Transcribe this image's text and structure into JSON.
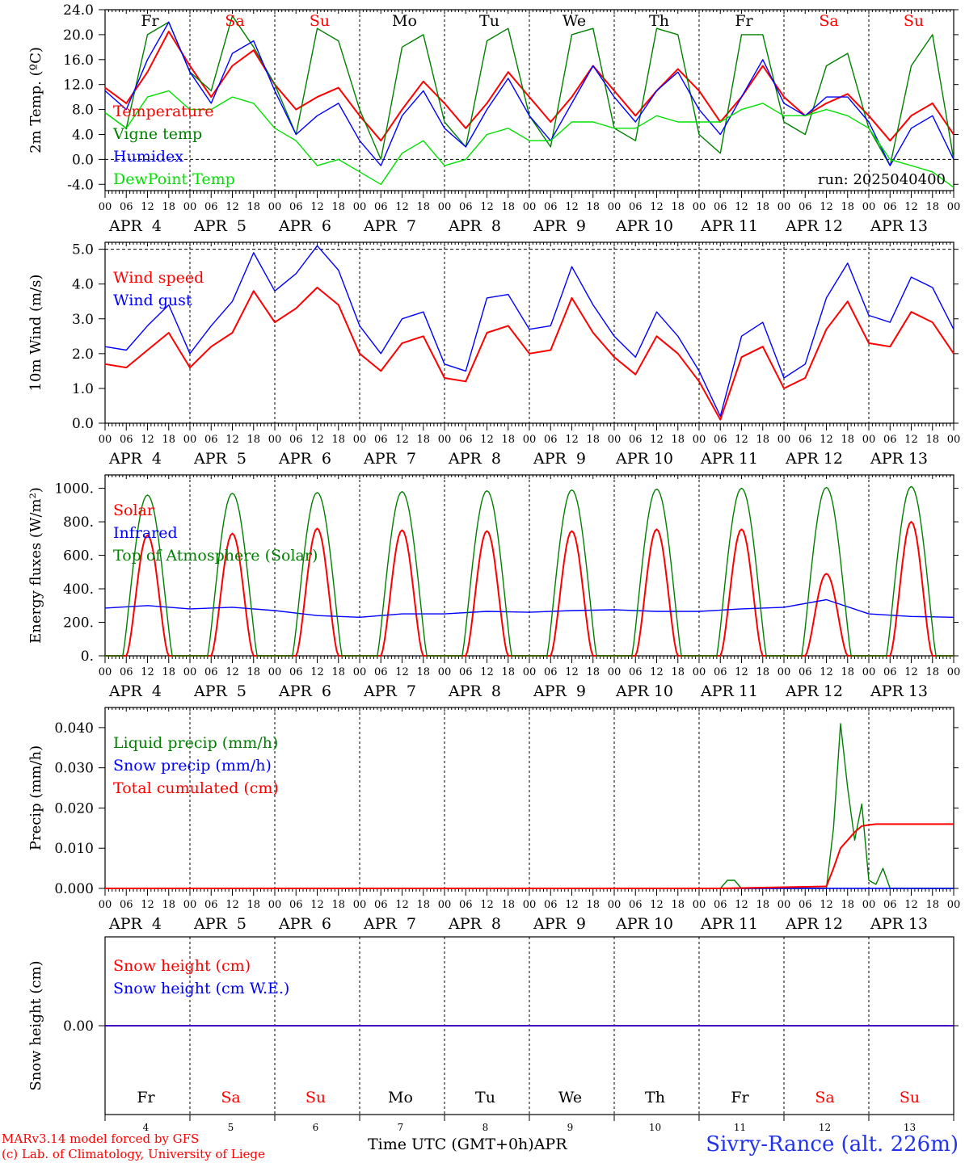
{
  "site_label": "Sivry-Rance (alt. 226m)",
  "credits": [
    "MARv3.14 model forced by GFS",
    "(c) Lab. of Climatology, University of Liege"
  ],
  "time_axis_label": "Time UTC (GMT+0h)",
  "month_label": "APR",
  "hour_ticks": [
    "00",
    "06",
    "12",
    "18"
  ],
  "days": [
    {
      "abbr": "Fr",
      "date": "APR  4",
      "num": "4",
      "weekend": false
    },
    {
      "abbr": "Sa",
      "date": "APR  5",
      "num": "5",
      "weekend": true
    },
    {
      "abbr": "Su",
      "date": "APR  6",
      "num": "6",
      "weekend": true
    },
    {
      "abbr": "Mo",
      "date": "APR  7",
      "num": "7",
      "weekend": false
    },
    {
      "abbr": "Tu",
      "date": "APR  8",
      "num": "8",
      "weekend": false
    },
    {
      "abbr": "We",
      "date": "APR  9",
      "num": "9",
      "weekend": false
    },
    {
      "abbr": "Th",
      "date": "APR 10",
      "num": "10",
      "weekend": false
    },
    {
      "abbr": "Fr",
      "date": "APR 11",
      "num": "11",
      "weekend": false
    },
    {
      "abbr": "Sa",
      "date": "APR 12",
      "num": "12",
      "weekend": true
    },
    {
      "abbr": "Su",
      "date": "APR 13",
      "num": "13",
      "weekend": true
    }
  ],
  "colors": {
    "red": "#ff0000",
    "green": "#008000",
    "blue": "#0000ff",
    "lightgreen": "#00e000",
    "weekend": "#ff0000",
    "weekday": "#000000"
  },
  "chart_data": [
    {
      "type": "line",
      "ylabel": "2m Temp. (ºC)",
      "ylim": [
        -5,
        24
      ],
      "yticks": [
        "-4.0",
        "0.0",
        "4.0",
        "8.0",
        "12.0",
        "16.0",
        "20.0",
        "24.0"
      ],
      "ytick_values": [
        -4,
        0,
        4,
        8,
        12,
        16,
        20,
        24
      ],
      "x_hours": [
        0,
        6,
        12,
        18,
        24,
        30,
        36,
        42,
        48,
        54,
        60,
        66,
        72,
        78,
        84,
        90,
        96,
        102,
        108,
        114,
        120,
        126,
        132,
        138,
        144,
        150,
        156,
        162,
        168,
        174,
        180,
        186,
        192,
        198,
        204,
        210,
        216,
        222,
        228,
        234,
        240
      ],
      "dashed_ref": 0,
      "annotation": "run: 2025040400",
      "series": [
        {
          "name": "Temperature",
          "color": "red",
          "values": [
            11.5,
            9,
            14,
            20.5,
            15,
            10,
            15,
            17.5,
            12,
            8,
            10,
            11.5,
            7,
            3,
            8,
            12.5,
            9,
            5,
            9,
            14,
            10,
            6,
            10,
            15,
            11,
            7,
            11,
            14.5,
            11,
            6,
            10,
            15,
            10,
            7,
            9,
            10.5,
            7,
            3,
            7,
            9,
            4
          ]
        },
        {
          "name": "Vigne temp",
          "color": "green",
          "values": [
            7.5,
            5,
            20,
            22,
            14,
            11,
            23,
            18,
            12,
            4,
            21,
            19,
            8,
            0,
            18,
            20,
            6,
            2,
            19,
            21,
            7,
            2,
            20,
            21,
            5,
            3,
            21,
            20,
            4,
            1,
            20,
            20,
            6,
            4,
            15,
            17,
            5,
            -1,
            15,
            20,
            0
          ]
        },
        {
          "name": "Humidex",
          "color": "blue",
          "values": [
            11,
            8,
            16,
            22,
            14,
            9,
            17,
            19,
            11,
            4,
            7,
            9,
            3,
            -1,
            7,
            11,
            5,
            2,
            8,
            13,
            7,
            3,
            9,
            15,
            10,
            6,
            11,
            14,
            8,
            4,
            10,
            16,
            9,
            7,
            10,
            10,
            6,
            -1,
            5,
            7,
            0
          ]
        },
        {
          "name": "DewPoint Temp",
          "color": "lightgreen",
          "values": [
            7.5,
            5,
            10,
            11,
            8,
            8,
            10,
            9,
            5,
            3,
            -1,
            0,
            -2,
            -4,
            1,
            3,
            -1,
            0,
            4,
            5,
            3,
            3,
            6,
            6,
            5,
            5,
            7,
            6,
            6,
            6,
            8,
            9,
            7,
            7,
            8,
            7,
            5,
            0,
            -1,
            -2,
            -4.5
          ]
        }
      ]
    },
    {
      "type": "line",
      "ylabel": "10m Wind (m/s)",
      "ylim": [
        0,
        5.2
      ],
      "yticks": [
        "0.0",
        "1.0",
        "2.0",
        "3.0",
        "4.0",
        "5.0"
      ],
      "ytick_values": [
        0,
        1,
        2,
        3,
        4,
        5
      ],
      "x_hours": [
        0,
        6,
        12,
        18,
        24,
        30,
        36,
        42,
        48,
        54,
        60,
        66,
        72,
        78,
        84,
        90,
        96,
        102,
        108,
        114,
        120,
        126,
        132,
        138,
        144,
        150,
        156,
        162,
        168,
        174,
        180,
        186,
        192,
        198,
        204,
        210,
        216,
        222,
        228,
        234,
        240
      ],
      "dashed_ref": 5,
      "series": [
        {
          "name": "Wind speed",
          "color": "red",
          "values": [
            1.7,
            1.6,
            2.1,
            2.6,
            1.6,
            2.2,
            2.6,
            3.8,
            2.9,
            3.3,
            3.9,
            3.4,
            2.0,
            1.5,
            2.3,
            2.5,
            1.3,
            1.2,
            2.6,
            2.8,
            2.0,
            2.1,
            3.6,
            2.6,
            1.9,
            1.4,
            2.5,
            2.0,
            1.2,
            0.1,
            1.9,
            2.2,
            1.0,
            1.3,
            2.7,
            3.5,
            2.3,
            2.2,
            3.2,
            2.9,
            2.0
          ]
        },
        {
          "name": "Wind gust",
          "color": "blue",
          "values": [
            2.2,
            2.1,
            2.8,
            3.4,
            2.0,
            2.8,
            3.5,
            4.9,
            3.8,
            4.3,
            5.1,
            4.4,
            2.8,
            2.0,
            3.0,
            3.2,
            1.7,
            1.5,
            3.6,
            3.7,
            2.7,
            2.8,
            4.5,
            3.4,
            2.5,
            1.9,
            3.2,
            2.5,
            1.5,
            0.2,
            2.5,
            2.9,
            1.3,
            1.7,
            3.6,
            4.6,
            3.1,
            2.9,
            4.2,
            3.9,
            2.7
          ]
        }
      ]
    },
    {
      "type": "line",
      "ylabel": "Energy fluxes (W/m²)",
      "ylim": [
        0,
        1080
      ],
      "yticks": [
        "0.",
        "200.",
        "400.",
        "600.",
        "800.",
        "1000."
      ],
      "ytick_values": [
        0,
        200,
        400,
        600,
        800,
        1000
      ],
      "series": [
        {
          "name": "Solar",
          "color": "red",
          "peaks": [
            720,
            730,
            760,
            750,
            745,
            745,
            755,
            755,
            490,
            800
          ]
        },
        {
          "name": "Infrared",
          "color": "blue",
          "x_hours": [
            0,
            12,
            24,
            36,
            48,
            60,
            72,
            84,
            96,
            108,
            120,
            132,
            144,
            156,
            168,
            180,
            192,
            204,
            216,
            228,
            240
          ],
          "values": [
            285,
            300,
            280,
            290,
            270,
            240,
            230,
            250,
            250,
            265,
            260,
            270,
            275,
            265,
            265,
            280,
            290,
            335,
            250,
            235,
            230
          ]
        },
        {
          "name": "Top of Atmosphere (Solar)",
          "color": "green",
          "peaks": [
            960,
            970,
            975,
            980,
            985,
            990,
            995,
            1000,
            1005,
            1010
          ]
        }
      ]
    },
    {
      "type": "line",
      "ylabel": "Precip (mm/h)",
      "ylim": [
        0,
        0.045
      ],
      "yticks": [
        "0.000",
        "0.010",
        "0.020",
        "0.030",
        "0.040"
      ],
      "ytick_values": [
        0,
        0.01,
        0.02,
        0.03,
        0.04
      ],
      "series": [
        {
          "name": "Liquid precip (mm/h)",
          "color": "green",
          "x_hours": [
            0,
            174,
            176,
            178,
            180,
            204,
            206,
            208,
            210,
            212,
            214,
            216,
            218,
            220,
            222,
            224,
            226,
            240
          ],
          "values": [
            0,
            0,
            0.002,
            0.002,
            0,
            0,
            0.015,
            0.041,
            0.025,
            0.012,
            0.021,
            0.002,
            0.001,
            0.005,
            0,
            0,
            0,
            0
          ]
        },
        {
          "name": "Snow precip (mm/h)",
          "color": "blue",
          "x_hours": [
            0,
            240
          ],
          "values": [
            0,
            0
          ]
        },
        {
          "name": "Total cumulated (cm)",
          "color": "red",
          "x_hours": [
            0,
            174,
            204,
            206,
            208,
            210,
            212,
            214,
            216,
            218,
            240
          ],
          "values": [
            0,
            0,
            0.0005,
            0.005,
            0.01,
            0.012,
            0.014,
            0.0155,
            0.0158,
            0.016,
            0.016
          ]
        }
      ]
    },
    {
      "type": "line",
      "ylabel": "Snow height (cm)",
      "ylim": [
        -1,
        1
      ],
      "yticks": [
        "0.00"
      ],
      "ytick_values": [
        0
      ],
      "series": [
        {
          "name": "Snow height (cm)",
          "color": "red",
          "x_hours": [
            0,
            240
          ],
          "values": [
            0,
            0
          ]
        },
        {
          "name": "Snow height (cm W.E.)",
          "color": "blue",
          "x_hours": [
            0,
            240
          ],
          "values": [
            0,
            0
          ]
        }
      ]
    }
  ]
}
